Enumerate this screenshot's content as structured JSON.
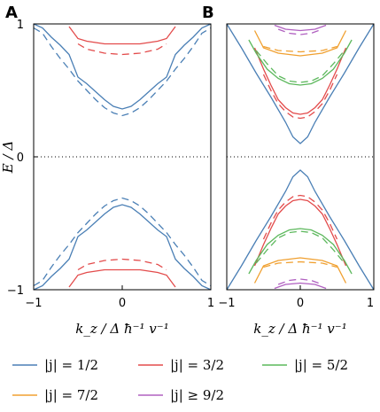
{
  "chart_data": [
    {
      "type": "line",
      "panel": "A",
      "xlabel": "k_z / Δ ħ⁻¹ v⁻¹",
      "ylabel": "E / Δ",
      "xlim": [
        -1,
        1
      ],
      "ylim": [
        -1,
        1
      ],
      "xticks": [
        "−1",
        "0",
        "1"
      ],
      "yticks": [
        "−1",
        "0",
        "1"
      ],
      "series": [
        {
          "j": "1/2",
          "color": "#4a7fb5",
          "style": "solid",
          "x": [
            -1.0,
            -0.9,
            -0.8,
            -0.7,
            -0.6,
            -0.5,
            -0.4,
            -0.3,
            -0.2,
            -0.1,
            0.0,
            0.1,
            0.2,
            0.3,
            0.4,
            0.5,
            0.6,
            0.7,
            0.8,
            0.9,
            1.0
          ],
          "y": [
            1.0,
            0.97,
            0.9,
            0.84,
            0.77,
            0.6,
            0.55,
            0.49,
            0.43,
            0.38,
            0.36,
            0.38,
            0.43,
            0.49,
            0.55,
            0.6,
            0.77,
            0.84,
            0.9,
            0.97,
            1.0
          ]
        },
        {
          "j": "1/2",
          "color": "#4a7fb5",
          "style": "dashed",
          "x": [
            -1.0,
            -0.9,
            -0.8,
            -0.7,
            -0.6,
            -0.5,
            -0.4,
            -0.3,
            -0.2,
            -0.1,
            0.0,
            0.1,
            0.2,
            0.3,
            0.4,
            0.5,
            0.6,
            0.7,
            0.8,
            0.9,
            1.0
          ],
          "y": [
            0.97,
            0.93,
            0.83,
            0.74,
            0.66,
            0.57,
            0.5,
            0.43,
            0.37,
            0.33,
            0.31,
            0.33,
            0.37,
            0.43,
            0.5,
            0.57,
            0.66,
            0.74,
            0.83,
            0.93,
            0.97
          ]
        },
        {
          "j": "3/2",
          "color": "#e34b4b",
          "style": "solid",
          "x": [
            -0.6,
            -0.5,
            -0.4,
            -0.2,
            0.0,
            0.2,
            0.4,
            0.5,
            0.6
          ],
          "y": [
            0.98,
            0.89,
            0.87,
            0.85,
            0.85,
            0.85,
            0.87,
            0.89,
            0.98
          ]
        },
        {
          "j": "3/2",
          "color": "#e34b4b",
          "style": "dashed",
          "x": [
            -0.5,
            -0.4,
            -0.2,
            0.0,
            0.2,
            0.4,
            0.5
          ],
          "y": [
            0.85,
            0.81,
            0.78,
            0.77,
            0.78,
            0.81,
            0.85
          ]
        }
      ]
    },
    {
      "type": "line",
      "panel": "B",
      "xlabel": "k_z / Δ ħ⁻¹ v⁻¹",
      "xlim": [
        -1,
        1
      ],
      "ylim": [
        -1,
        1
      ],
      "xticks": [
        "−1",
        "0",
        "1"
      ],
      "series": [
        {
          "j": "1/2",
          "color": "#4a7fb5",
          "style": "solid",
          "x": [
            -1.0,
            -0.8,
            -0.6,
            -0.4,
            -0.2,
            -0.1,
            0.0,
            0.1,
            0.2,
            0.4,
            0.6,
            0.8,
            1.0
          ],
          "y": [
            1.0,
            0.82,
            0.63,
            0.45,
            0.26,
            0.15,
            0.1,
            0.15,
            0.26,
            0.45,
            0.63,
            0.82,
            1.0
          ]
        },
        {
          "j": "3/2",
          "color": "#e34b4b",
          "style": "solid",
          "x": [
            -0.62,
            -0.5,
            -0.4,
            -0.3,
            -0.2,
            -0.1,
            0.0,
            0.1,
            0.2,
            0.3,
            0.4,
            0.5,
            0.62
          ],
          "y": [
            0.82,
            0.66,
            0.54,
            0.43,
            0.37,
            0.33,
            0.32,
            0.33,
            0.37,
            0.43,
            0.54,
            0.66,
            0.82
          ]
        },
        {
          "j": "3/2",
          "color": "#e34b4b",
          "style": "dashed",
          "x": [
            -0.5,
            -0.4,
            -0.3,
            -0.2,
            -0.1,
            0.0,
            0.1,
            0.2,
            0.3,
            0.4,
            0.5
          ],
          "y": [
            0.62,
            0.5,
            0.4,
            0.34,
            0.3,
            0.29,
            0.3,
            0.34,
            0.4,
            0.5,
            0.62
          ]
        },
        {
          "j": "5/2",
          "color": "#5cb85c",
          "style": "solid",
          "x": [
            -0.7,
            -0.6,
            -0.45,
            -0.3,
            -0.15,
            0.0,
            0.15,
            0.3,
            0.45,
            0.6,
            0.7
          ],
          "y": [
            0.88,
            0.78,
            0.66,
            0.59,
            0.55,
            0.54,
            0.55,
            0.59,
            0.66,
            0.78,
            0.88
          ]
        },
        {
          "j": "5/2",
          "color": "#5cb85c",
          "style": "dashed",
          "x": [
            -0.6,
            -0.45,
            -0.3,
            -0.15,
            0.0,
            0.15,
            0.3,
            0.45,
            0.6
          ],
          "y": [
            0.8,
            0.7,
            0.61,
            0.57,
            0.56,
            0.57,
            0.61,
            0.7,
            0.8
          ]
        },
        {
          "j": "7/2",
          "color": "#f0a030",
          "style": "solid",
          "x": [
            -0.62,
            -0.5,
            -0.3,
            0.0,
            0.3,
            0.5,
            0.62
          ],
          "y": [
            0.95,
            0.82,
            0.78,
            0.76,
            0.78,
            0.82,
            0.95
          ]
        },
        {
          "j": "7/2",
          "color": "#f0a030",
          "style": "dashed",
          "x": [
            -0.5,
            -0.3,
            0.0,
            0.3,
            0.5
          ],
          "y": [
            0.83,
            0.8,
            0.79,
            0.8,
            0.83
          ]
        },
        {
          "j": "≥ 9/2",
          "color": "#b060c0",
          "style": "solid",
          "x": [
            -0.35,
            -0.2,
            0.0,
            0.2,
            0.35
          ],
          "y": [
            0.99,
            0.96,
            0.95,
            0.96,
            0.99
          ]
        },
        {
          "j": "≥ 9/2",
          "color": "#b060c0",
          "style": "dashed",
          "x": [
            -0.3,
            -0.15,
            0.0,
            0.15,
            0.3
          ],
          "y": [
            0.96,
            0.93,
            0.92,
            0.93,
            0.96
          ]
        }
      ]
    }
  ],
  "panels": {
    "a_label": "A",
    "b_label": "B"
  },
  "legend": {
    "placement": "bottom",
    "items": [
      {
        "label": "|j| = 1/2",
        "color": "#4a7fb5"
      },
      {
        "label": "|j| = 3/2",
        "color": "#e34b4b"
      },
      {
        "label": "|j| = 5/2",
        "color": "#5cb85c"
      },
      {
        "label": "|j| = 7/2",
        "color": "#f0a030"
      },
      {
        "label": "|j| ≥ 9/2",
        "color": "#b060c0"
      }
    ]
  },
  "axes": {
    "ylabel": "E / Δ",
    "xlabel": "k_z / Δ ħ⁻¹ v⁻¹"
  }
}
